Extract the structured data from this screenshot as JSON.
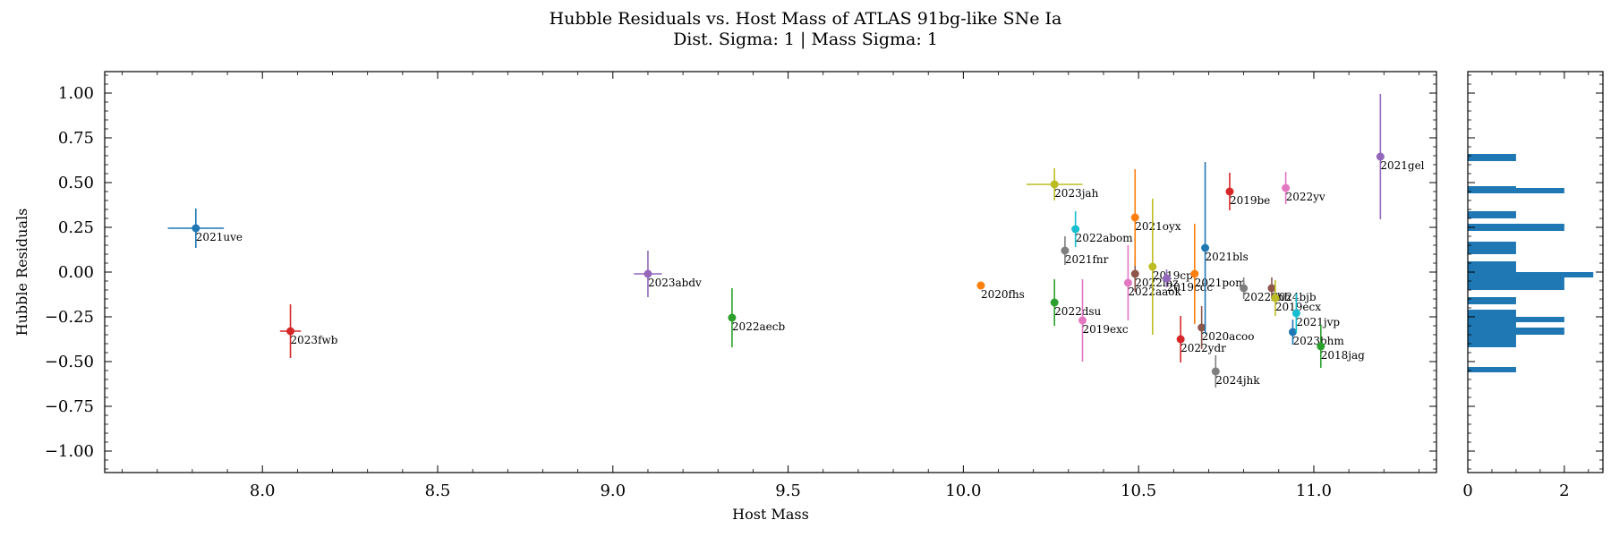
{
  "chart_data": {
    "type": "scatter",
    "title": "Hubble Residuals vs. Host Mass of ATLAS 91bg-like SNe Ia",
    "subtitle": "Dist. Sigma: 1 | Mass Sigma: 1",
    "xlabel": "Host Mass",
    "ylabel": "Hubble Residuals",
    "xlim": [
      7.55,
      11.35
    ],
    "ylim": [
      -1.12,
      1.12
    ],
    "xticks": [
      8.0,
      8.5,
      9.0,
      9.5,
      10.0,
      10.5,
      11.0
    ],
    "xtick_labels": [
      "8.0",
      "8.5",
      "9.0",
      "9.5",
      "10.0",
      "10.5",
      "11.0"
    ],
    "yticks": [
      1.0,
      0.75,
      0.5,
      0.25,
      0.0,
      -0.25,
      -0.5,
      -0.75,
      -1.0
    ],
    "ytick_labels": [
      "1.00",
      "0.75",
      "0.50",
      "0.25",
      "0.00",
      "−0.25",
      "−0.50",
      "−0.75",
      "−1.00"
    ],
    "points": [
      {
        "name": "2021uve",
        "x": 7.81,
        "y": 0.245,
        "xerr": 0.08,
        "yerr": 0.11,
        "color": "#1f77b4"
      },
      {
        "name": "2023fwb",
        "x": 8.08,
        "y": -0.33,
        "xerr": 0.03,
        "yerr": 0.15,
        "color": "#d62728"
      },
      {
        "name": "2023abdv",
        "x": 9.1,
        "y": -0.01,
        "xerr": 0.04,
        "yerr": 0.13,
        "color": "#9467bd"
      },
      {
        "name": "2022aecb",
        "x": 9.34,
        "y": -0.255,
        "xerr": 0.0,
        "yerr": 0.165,
        "color": "#2ca02c"
      },
      {
        "name": "2020fhs",
        "x": 10.05,
        "y": -0.075,
        "xerr": 0.0,
        "yerr": 0.0,
        "color": "#ff7f0e"
      },
      {
        "name": "2023jah",
        "x": 10.26,
        "y": 0.49,
        "xerr": 0.08,
        "yerr": 0.09,
        "color": "#bcbd22"
      },
      {
        "name": "2022dsu",
        "x": 10.26,
        "y": -0.17,
        "xerr": 0.0,
        "yerr": 0.13,
        "color": "#2ca02c"
      },
      {
        "name": "2021fnr",
        "x": 10.29,
        "y": 0.12,
        "xerr": 0.0,
        "yerr": 0.08,
        "color": "#7f7f7f"
      },
      {
        "name": "2022abom",
        "x": 10.32,
        "y": 0.24,
        "xerr": 0.0,
        "yerr": 0.1,
        "color": "#17becf"
      },
      {
        "name": "2019exc",
        "x": 10.34,
        "y": -0.27,
        "xerr": 0.0,
        "yerr": 0.23,
        "color": "#e377c2"
      },
      {
        "name": "2022aaok",
        "x": 10.47,
        "y": -0.06,
        "xerr": 0.0,
        "yerr": 0.21,
        "color": "#e377c2"
      },
      {
        "name": "2022ihz",
        "x": 10.49,
        "y": -0.01,
        "xerr": 0.0,
        "yerr": 0.1,
        "color": "#8c564b"
      },
      {
        "name": "2021oyx",
        "x": 10.49,
        "y": 0.305,
        "xerr": 0.0,
        "yerr": 0.27,
        "color": "#ff7f0e"
      },
      {
        "name": "2019cp",
        "x": 10.54,
        "y": 0.03,
        "xerr": 0.0,
        "yerr": 0.38,
        "color": "#bcbd22"
      },
      {
        "name": "2019cdc",
        "x": 10.58,
        "y": -0.035,
        "xerr": 0.0,
        "yerr": 0.05,
        "color": "#9467bd"
      },
      {
        "name": "2022ydr",
        "x": 10.62,
        "y": -0.375,
        "xerr": 0.0,
        "yerr": 0.13,
        "color": "#d62728"
      },
      {
        "name": "2021pom",
        "x": 10.66,
        "y": -0.01,
        "xerr": 0.0,
        "yerr": 0.28,
        "color": "#ff7f0e"
      },
      {
        "name": "2020acoo",
        "x": 10.68,
        "y": -0.31,
        "xerr": 0.0,
        "yerr": 0.12,
        "color": "#8c564b"
      },
      {
        "name": "2021bls",
        "x": 10.69,
        "y": 0.135,
        "xerr": 0.0,
        "yerr": 0.48,
        "color": "#1f77b4"
      },
      {
        "name": "2024jhk",
        "x": 10.72,
        "y": -0.555,
        "xerr": 0.0,
        "yerr": 0.09,
        "color": "#7f7f7f"
      },
      {
        "name": "2019be",
        "x": 10.76,
        "y": 0.45,
        "xerr": 0.0,
        "yerr": 0.105,
        "color": "#d62728"
      },
      {
        "name": "2022xhh",
        "x": 10.8,
        "y": -0.09,
        "xerr": 0.0,
        "yerr": 0.06,
        "color": "#7f7f7f"
      },
      {
        "name": "2024bjb",
        "x": 10.88,
        "y": -0.09,
        "xerr": 0.0,
        "yerr": 0.06,
        "color": "#8c564b"
      },
      {
        "name": "2019ecx",
        "x": 10.89,
        "y": -0.145,
        "xerr": 0.0,
        "yerr": 0.1,
        "color": "#bcbd22"
      },
      {
        "name": "2022yv",
        "x": 10.92,
        "y": 0.47,
        "xerr": 0.0,
        "yerr": 0.09,
        "color": "#e377c2"
      },
      {
        "name": "2023bhm",
        "x": 10.94,
        "y": -0.335,
        "xerr": 0.0,
        "yerr": 0.07,
        "color": "#1f77b4"
      },
      {
        "name": "2021jvp",
        "x": 10.95,
        "y": -0.23,
        "xerr": 0.0,
        "yerr": 0.11,
        "color": "#17becf"
      },
      {
        "name": "2018jag",
        "x": 11.02,
        "y": -0.415,
        "xerr": 0.0,
        "yerr": 0.12,
        "color": "#2ca02c"
      },
      {
        "name": "2021gel",
        "x": 11.19,
        "y": 0.645,
        "xerr": 0.0,
        "yerr": 0.35,
        "color": "#9467bd"
      }
    ],
    "histogram": {
      "orientation": "horizontal",
      "color": "#1f77b4",
      "xlim": [
        0,
        2.8
      ],
      "xticks": [
        0,
        2
      ],
      "xtick_labels": [
        "0",
        "2"
      ],
      "bins": [
        {
          "y0": 0.62,
          "y1": 0.66,
          "count": 1
        },
        {
          "y0": 0.44,
          "y1": 0.48,
          "count": 1
        },
        {
          "y0": 0.44,
          "y1": 0.47,
          "count": 2
        },
        {
          "y0": 0.3,
          "y1": 0.34,
          "count": 1
        },
        {
          "y0": 0.23,
          "y1": 0.27,
          "count": 2
        },
        {
          "y0": 0.1,
          "y1": 0.17,
          "count": 1
        },
        {
          "y0": -0.07,
          "y1": 0.06,
          "count": 1
        },
        {
          "y0": -0.03,
          "y1": 0.0,
          "count": 2.6
        },
        {
          "y0": -0.1,
          "y1": -0.03,
          "count": 2
        },
        {
          "y0": -0.18,
          "y1": -0.14,
          "count": 1
        },
        {
          "y0": -0.27,
          "y1": -0.21,
          "count": 1
        },
        {
          "y0": -0.28,
          "y1": -0.25,
          "count": 2
        },
        {
          "y0": -0.42,
          "y1": -0.27,
          "count": 1
        },
        {
          "y0": -0.35,
          "y1": -0.31,
          "count": 2
        },
        {
          "y0": -0.56,
          "y1": -0.53,
          "count": 1
        }
      ]
    }
  }
}
